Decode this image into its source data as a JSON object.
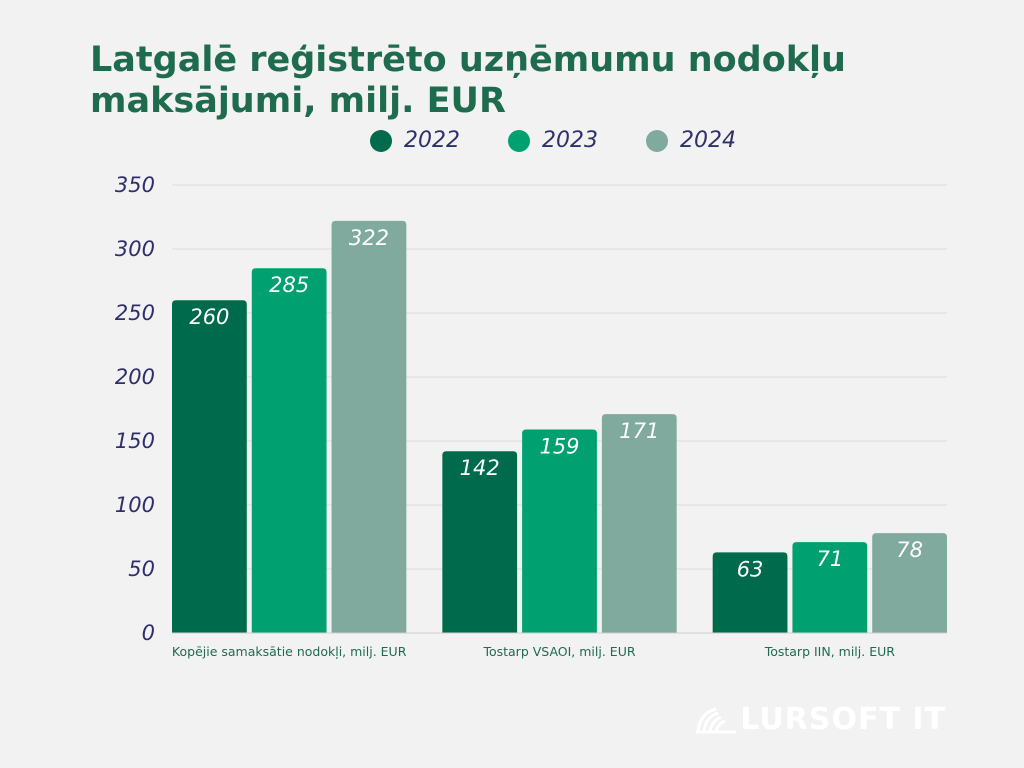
{
  "chart_data": {
    "type": "bar",
    "title": "Latgalē reģistrēto uzņēmumu nodokļu maksājumi, milj. EUR",
    "categories": [
      "Kopējie samaksātie nodokļi, milj. EUR",
      "Tostarp VSAOI, milj. EUR",
      "Tostarp IIN, milj. EUR"
    ],
    "series": [
      {
        "name": "2022",
        "values": [
          260,
          142,
          63
        ],
        "color": "#006b4c"
      },
      {
        "name": "2023",
        "values": [
          285,
          159,
          71
        ],
        "color": "#00a070"
      },
      {
        "name": "2024",
        "values": [
          322,
          171,
          78
        ],
        "color": "#80aa9e"
      }
    ],
    "ylim": [
      0,
      350
    ],
    "yticks": [
      0,
      50,
      100,
      150,
      200,
      250,
      300,
      350
    ],
    "grid": true,
    "legend_position": "top"
  },
  "brand": {
    "name": "LURSOFT IT",
    "logo_icon": "shell-logo-icon"
  }
}
